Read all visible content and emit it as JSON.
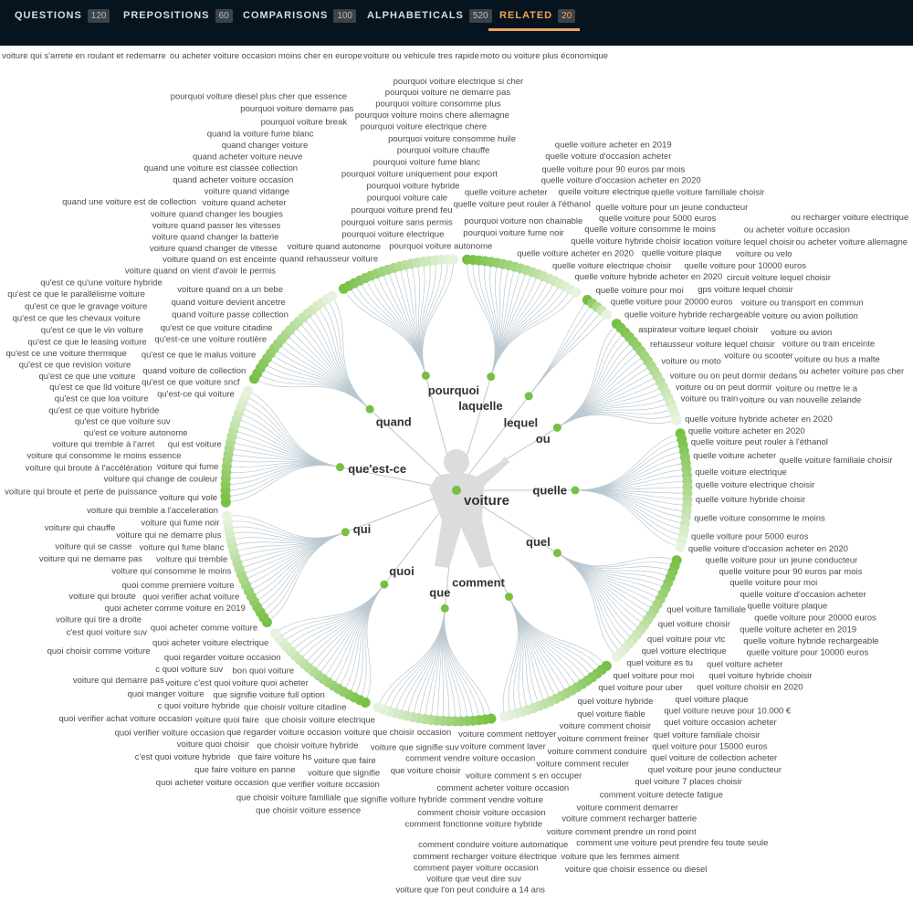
{
  "tabs": [
    {
      "label": "QUESTIONS",
      "count": "120",
      "active": false
    },
    {
      "label": "PREPOSITIONS",
      "count": "60",
      "active": false
    },
    {
      "label": "COMPARISONS",
      "count": "100",
      "active": false
    },
    {
      "label": "ALPHABETICALS",
      "count": "520",
      "active": false
    },
    {
      "label": "RELATED",
      "count": "20",
      "active": true
    }
  ],
  "colors": {
    "header_bg": "#06141f",
    "accent": "#f0a55c",
    "dot_strong": "#76c043",
    "dot_pale": "#e8f3df",
    "line": "#b9c7d1"
  },
  "center": {
    "term": "voiture",
    "icon": "person-silhouette-icon"
  },
  "branches": [
    {
      "name": "quelle",
      "leaves": [
        "quelle voiture acheter en 2020",
        "quelle voiture peut rouler à l'éthanol",
        "quelle voiture acheter",
        "quelle voiture electrique",
        "quelle voiture electrique choisir",
        "quelle voiture hybride choisir",
        "quelle voiture consomme le moins",
        "quelle voiture pour 5000 euros",
        "quelle voiture hybride acheter en 2020",
        "quelle voiture d'occasion acheter en 2020",
        "quelle voiture pour un jeune conducteur",
        "quelle voiture pour 90 euros par mois",
        "quelle voiture pour moi",
        "quelle voiture d'occasion acheter",
        "quelle voiture plaque",
        "quelle voiture pour 20000 euros",
        "quelle voiture familiale choisir",
        "quelle voiture acheter en 2019",
        "quelle voiture hybride rechargeable",
        "quelle voiture pour 10000 euros"
      ]
    },
    {
      "name": "quel",
      "leaves": [
        "quel voiture choisir",
        "quel voiture acheter",
        "quel voiture hybride choisir",
        "quel voiture pour vtc",
        "quel voiture choisir en 2020",
        "quel voiture electrique",
        "quel voiture familiale",
        "quel voiture plaque",
        "quel voiture es tu",
        "quel voiture neuve pour 10.000 €",
        "quel voiture occasion acheter",
        "quel voiture pour moi",
        "quel voiture familiale choisir",
        "quel voiture pour 15000 euros",
        "quel voiture de collection acheter",
        "quel voiture pour jeune conducteur",
        "quel voiture pour uber",
        "quel voiture 7 places choisir",
        "quel voiture hybride",
        "quel voiture fiable"
      ]
    },
    {
      "name": "comment",
      "leaves": [
        "comment voiture detecte fatigue",
        "voiture comment choisir",
        "voiture comment freiner",
        "voiture comment demarrer",
        "voiture comment conduire",
        "voiture comment recharger batterie",
        "voiture comment reculer",
        "voiture comment prendre un rond point",
        "voiture comment s en occuper",
        "voiture comment nettoyer",
        "voiture comment laver",
        "comment acheter voiture occasion",
        "comment vendre voiture",
        "comment conduire voiture automatique",
        "comment choisir voiture occasion",
        "comment fonctionne voiture hybride",
        "comment recharger voiture électrique",
        "comment vendre voiture occasion",
        "comment une voiture peut prendre feu toute seule",
        "comment payer voiture occasion"
      ]
    },
    {
      "name": "que",
      "leaves": [
        "que voiture choisir",
        "voiture que les femmes aiment",
        "voiture que veut dire suv",
        "voiture que choisir essence ou diesel",
        "voiture que l'on peut conduire a 14 ans",
        "voiture que choisir occasion",
        "voiture que signifie suv",
        "voiture que faire",
        "voiture que signifie",
        "que choisir voiture electrique",
        "que choisir voiture hybride",
        "que verifier voiture occasion",
        "que signifie voiture hybride",
        "que regarder voiture occasion",
        "que choisir voiture citadine",
        "que faire voiture hs",
        "que faire voiture en panne",
        "que choisir voiture familiale",
        "que signifie voiture full option",
        "que choisir voiture essence"
      ]
    },
    {
      "name": "quoi",
      "leaves": [
        "voiture quoi acheter",
        "voiture quoi choisir",
        "voiture quoi faire",
        "bon quoi voiture",
        "quoi verifier voiture occasion",
        "c quoi voiture hybride",
        "quoi regarder voiture occasion",
        "quoi acheter voiture occasion",
        "voiture c'est quoi",
        "quoi acheter voiture electrique",
        "c quoi voiture suv",
        "quoi manger voiture",
        "quoi acheter comme voiture",
        "c'est quoi voiture hybride",
        "quoi verifier achat voiture occasion",
        "quoi acheter comme voiture en 2019",
        "quoi choisir comme voiture",
        "quoi verifier achat voiture",
        "c'est quoi voiture suv",
        "quoi comme premiere voiture"
      ]
    },
    {
      "name": "qui",
      "leaves": [
        "voiture qui consomme le moins",
        "voiture qui broute",
        "voiture qui tremble",
        "voiture qui demarre pas",
        "voiture qui fume blanc",
        "voiture qui ne demarre pas",
        "voiture qui ne demarre plus",
        "voiture qui tire a droite",
        "voiture qui fume noir",
        "voiture qui chauffe",
        "voiture qui tremble a l'acceleration",
        "voiture qui s'arrete en roulant et redemarre",
        "voiture qui vole",
        "voiture qui broute et perte de puissance",
        "voiture qui se casse",
        "voiture qui change de couleur",
        "voiture qui broute à l'accélération",
        "voiture qui fume",
        "voiture qui consomme le moins essence",
        "voiture qui tremble à l'arret"
      ]
    },
    {
      "name": "que'est-ce",
      "leaves": [
        "qu'est ce voiture autonome",
        "qu'est ce que voiture suv",
        "qu'est ce que voiture hybride",
        "qu'est ce que loa voiture",
        "qu'est ce que lld voiture",
        "qu'est ce que une voiture",
        "qu'est ce que revision voiture",
        "qu'est ce une voiture thermique",
        "qui est voiture",
        "qu'est ce que le leasing voiture",
        "qu'est ce que le vin voiture",
        "qu'est ce que les chevaux voiture",
        "qu'est ce que le gravage voiture",
        "qu'est ce que le parallélisme voiture",
        "qu'est ce que le malus voiture",
        "qu'est ce qu'une voiture hybride",
        "qu'est ce que voiture sncf",
        "qu'est-ce une voiture routière",
        "qu'est-ce qui voiture",
        "qu'est ce que voiture citadine"
      ]
    },
    {
      "name": "quand",
      "leaves": [
        "quand voiture de collection",
        "quand voiture passe collection",
        "quand voiture devient ancetre",
        "voiture quand on a un bebe",
        "voiture quand on vient d'avoir le permis",
        "voiture quand on est enceinte",
        "voiture quand changer de vitesse",
        "voiture quand changer la batterie",
        "voiture quand passer les vitesses",
        "voiture quand changer les bougies",
        "voiture quand acheter",
        "voiture quand vidange",
        "quand acheter voiture occasion",
        "quand une voiture est classée collection",
        "quand acheter voiture neuve",
        "quand changer voiture",
        "quand la voiture fume blanc",
        "quand une voiture est de collection",
        "quand rehausseur voiture",
        "voiture quand autonome"
      ]
    },
    {
      "name": "pourquoi",
      "leaves": [
        "pourquoi voiture electrique",
        "pourquoi voiture sans permis",
        "pourquoi voiture prend feu",
        "pourquoi voiture cale",
        "pourquoi voiture hybride",
        "pourquoi voiture uniquement pour export",
        "pourquoi voiture fume blanc",
        "pourquoi voiture autonome",
        "pourquoi voiture chauffe",
        "pourquoi voiture consomme huile",
        "pourquoi voiture electrique chere",
        "pourquoi voiture moins chere allemagne",
        "pourquoi voiture break",
        "pourquoi voiture consomme plus",
        "pourquoi voiture demarre pas",
        "pourquoi voiture ne demarre pas",
        "pourquoi voiture electrique si cher",
        "pourquoi voiture diesel plus cher que essence",
        "pourquoi voiture fume noir",
        "pourquoi voiture non chainable"
      ]
    },
    {
      "name": "laquelle",
      "leaves": [
        "quelle voiture acheter en 2020",
        "quelle voiture peut rouler à l'éthanol",
        "quelle voiture acheter",
        "quelle voiture electrique",
        "quelle voiture electrique choisir",
        "quelle voiture hybride choisir",
        "quelle voiture consomme le moins",
        "quelle voiture pour 5000 euros",
        "quelle voiture hybride acheter en 2020",
        "quelle voiture d'occasion acheter en 2020",
        "quelle voiture pour un jeune conducteur",
        "quelle voiture pour 90 euros par mois",
        "quelle voiture pour moi",
        "quelle voiture d'occasion acheter",
        "quelle voiture plaque",
        "quelle voiture pour 20000 euros",
        "quelle voiture familiale choisir",
        "quelle voiture acheter en 2019",
        "quelle voiture hybride rechargeable",
        "quelle voiture pour 10000 euros"
      ]
    },
    {
      "name": "lequel",
      "leaves": [
        "aspirateur voiture lequel choisir",
        "gps voiture lequel choisir",
        "location voiture lequel choisir",
        "rehausseur voiture lequel choisir",
        "circuit voiture lequel choisir"
      ]
    },
    {
      "name": "ou",
      "leaves": [
        "voiture ou moto",
        "voiture ou transport en commun",
        "voiture ou on peut dormir dedans",
        "voiture ou scooter",
        "voiture ou on peut dormir",
        "voiture ou avion pollution",
        "voiture ou train",
        "voiture ou avion",
        "voiture ou velo",
        "voiture ou van nouvelle zelande",
        "voiture ou train enceinte",
        "voiture ou mettre le a",
        "voiture ou bus a malte",
        "ou acheter voiture occasion",
        "ou acheter voiture occasion moins cher en europe",
        "ou recharger voiture electrique",
        "ou acheter voiture pas cher",
        "ou acheter voiture allemagne",
        "voiture ou vehicule tres rapide",
        "moto ou voiture plus économique"
      ]
    }
  ]
}
